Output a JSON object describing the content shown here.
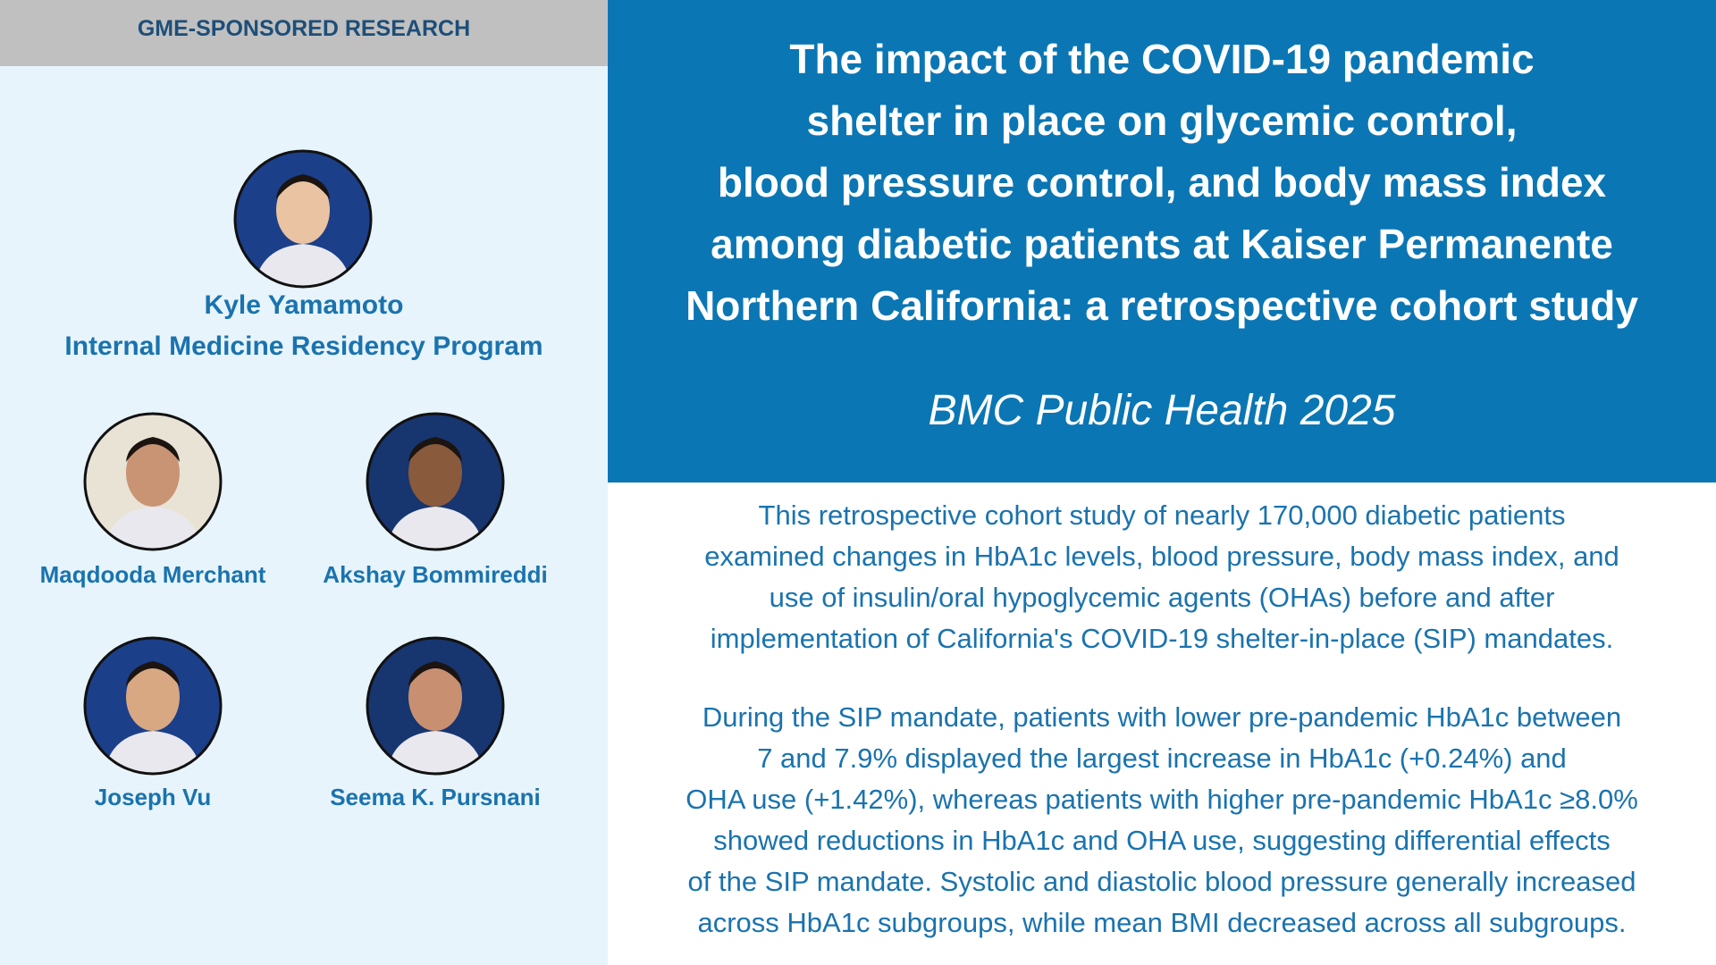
{
  "header": {
    "label": "GME-SPONSORED RESEARCH"
  },
  "title": {
    "lines": [
      "The impact of the COVID-19 pandemic",
      "shelter in place on glycemic control,",
      "blood pressure control, and body mass index",
      "among diabetic patients at Kaiser Permanente",
      "Northern California: a retrospective cohort study"
    ]
  },
  "journal": "BMC Public Health 2025",
  "lead_author": {
    "name": "Kyle Yamamoto",
    "program": "Internal Medicine Residency Program"
  },
  "coauthors": [
    "Maqdooda Merchant",
    "Akshay Bommireddi",
    "Joseph Vu",
    "Seema K. Pursnani"
  ],
  "paragraphs": [
    [
      "This retrospective cohort study of nearly 170,000 diabetic patients",
      "examined changes in HbA1c levels, blood pressure, body mass index, and",
      "use of insulin/oral hypoglycemic agents (OHAs) before and after",
      "implementation of California's COVID-19 shelter-in-place (SIP) mandates."
    ],
    [
      "During the SIP mandate, patients with lower pre-pandemic HbA1c between",
      "7 and 7.9% displayed the largest increase in HbA1c (+0.24%) and",
      "OHA use (+1.42%), whereas patients with higher pre-pandemic HbA1c ≥8.0%",
      "showed reductions in HbA1c and OHA use, suggesting differential effects",
      "of the SIP mandate. Systolic and diastolic blood pressure generally increased",
      "across HbA1c subgroups, while mean BMI decreased across all subgroups."
    ]
  ]
}
